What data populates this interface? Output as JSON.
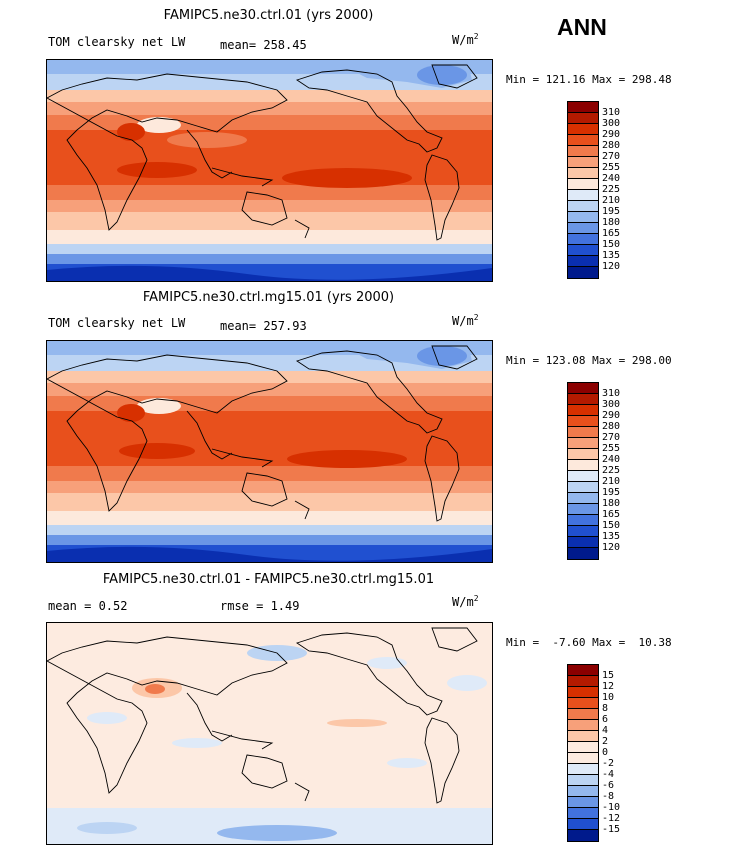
{
  "season": "ANN",
  "units_base": "W/m",
  "units_exp": "2",
  "panels": [
    {
      "title": "FAMIPC5.ne30.ctrl.01 (yrs 2000)",
      "left_label": "TOM clearsky net LW",
      "mid_label": "mean= 258.45",
      "min_max": "Min = 121.16 Max = 298.48",
      "colorbar_labels": [
        "310",
        "300",
        "290",
        "280",
        "270",
        "255",
        "240",
        "225",
        "210",
        "195",
        "180",
        "165",
        "150",
        "135",
        "120"
      ],
      "colorbar_colors": [
        "#8b0000",
        "#b31a00",
        "#d73000",
        "#e8501c",
        "#f07a4c",
        "#f7a07a",
        "#fcc7a8",
        "#fde9dc",
        "#dfeaf8",
        "#bcd4f3",
        "#94b8ee",
        "#6a96e6",
        "#4272de",
        "#2050d0",
        "#0a2fb0",
        "#001a8c"
      ]
    },
    {
      "title": "FAMIPC5.ne30.ctrl.mg15.01 (yrs 2000)",
      "left_label": "TOM clearsky net LW",
      "mid_label": "mean= 257.93",
      "min_max": "Min = 123.08 Max = 298.00",
      "colorbar_labels": [
        "310",
        "300",
        "290",
        "280",
        "270",
        "255",
        "240",
        "225",
        "210",
        "195",
        "180",
        "165",
        "150",
        "135",
        "120"
      ],
      "colorbar_colors": [
        "#8b0000",
        "#b31a00",
        "#d73000",
        "#e8501c",
        "#f07a4c",
        "#f7a07a",
        "#fcc7a8",
        "#fde9dc",
        "#dfeaf8",
        "#bcd4f3",
        "#94b8ee",
        "#6a96e6",
        "#4272de",
        "#2050d0",
        "#0a2fb0",
        "#001a8c"
      ]
    },
    {
      "title": "FAMIPC5.ne30.ctrl.01 - FAMIPC5.ne30.ctrl.mg15.01",
      "left_label": "mean =   0.52",
      "mid_label": "rmse =   1.49",
      "min_max": "Min =  -7.60 Max =  10.38",
      "colorbar_labels": [
        "15",
        "12",
        "10",
        "8",
        "6",
        "4",
        "2",
        "0",
        "-2",
        "-4",
        "-6",
        "-8",
        "-10",
        "-12",
        "-15"
      ],
      "colorbar_colors": [
        "#8b0000",
        "#b31a00",
        "#d73000",
        "#e8501c",
        "#f07a4c",
        "#f7a07a",
        "#fcc7a8",
        "#fdebe0",
        "#fdebe0",
        "#dfeaf8",
        "#bcd4f3",
        "#94b8ee",
        "#6a96e6",
        "#4272de",
        "#2050d0",
        "#001a8c"
      ]
    }
  ]
}
